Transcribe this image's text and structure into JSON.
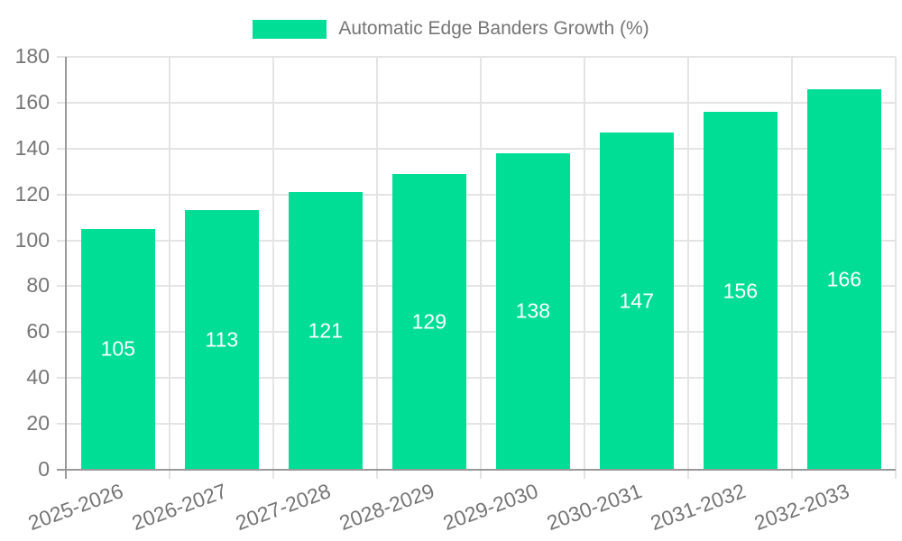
{
  "chart_data": {
    "type": "bar",
    "title": "Automatic Edge Banders Growth (%)",
    "categories": [
      "2025-2026",
      "2026-2027",
      "2027-2028",
      "2028-2029",
      "2029-2030",
      "2030-2031",
      "2031-2032",
      "2032-2033"
    ],
    "values": [
      105,
      113,
      121,
      129,
      138,
      147,
      156,
      166
    ],
    "xlabel": "",
    "ylabel": "",
    "ylim": [
      0,
      180
    ],
    "y_ticks": [
      0,
      20,
      40,
      60,
      80,
      100,
      120,
      140,
      160,
      180
    ],
    "grid": "on",
    "legend_position": "top-center",
    "colors": {
      "bar_fill": "#00DE96",
      "value_label": "#ffffff",
      "axis_line": "#999999",
      "gridline": "#e4e4e4",
      "tick_text": "#757575",
      "legend_text": "#757575",
      "background": "#ffffff"
    }
  }
}
